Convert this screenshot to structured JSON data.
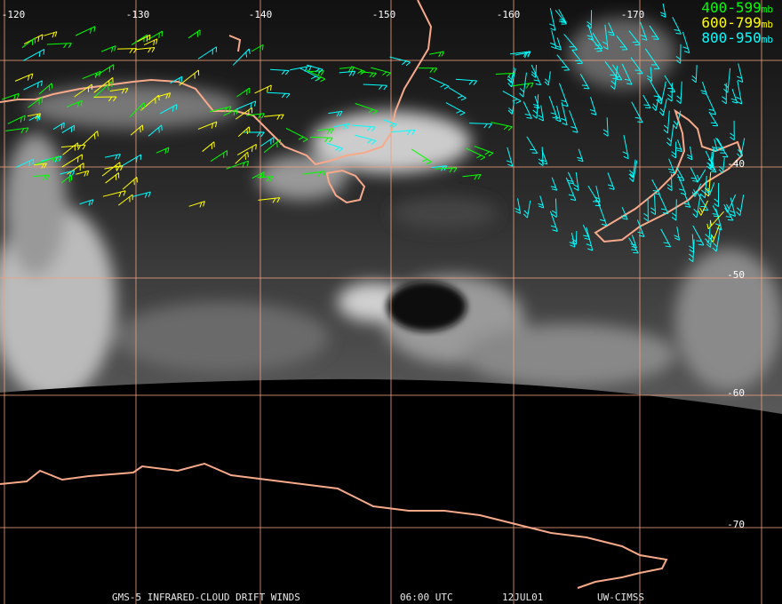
{
  "map": {
    "lon_labels": [
      "-120",
      "-130",
      "-140",
      "-150",
      "-160",
      "-170"
    ],
    "lat_labels": [
      "-40",
      "-50",
      "-60",
      "-70"
    ],
    "legend": [
      {
        "range": "400-599",
        "unit": "mb"
      },
      {
        "range": "600-799",
        "unit": "mb"
      },
      {
        "range": "800-950",
        "unit": "mb"
      }
    ],
    "footer": [
      "GMS-5 INFRARED-CLOUD DRIFT WINDS",
      "06:00 UTC",
      "12JUL01",
      "UW-CIMSS"
    ]
  }
}
